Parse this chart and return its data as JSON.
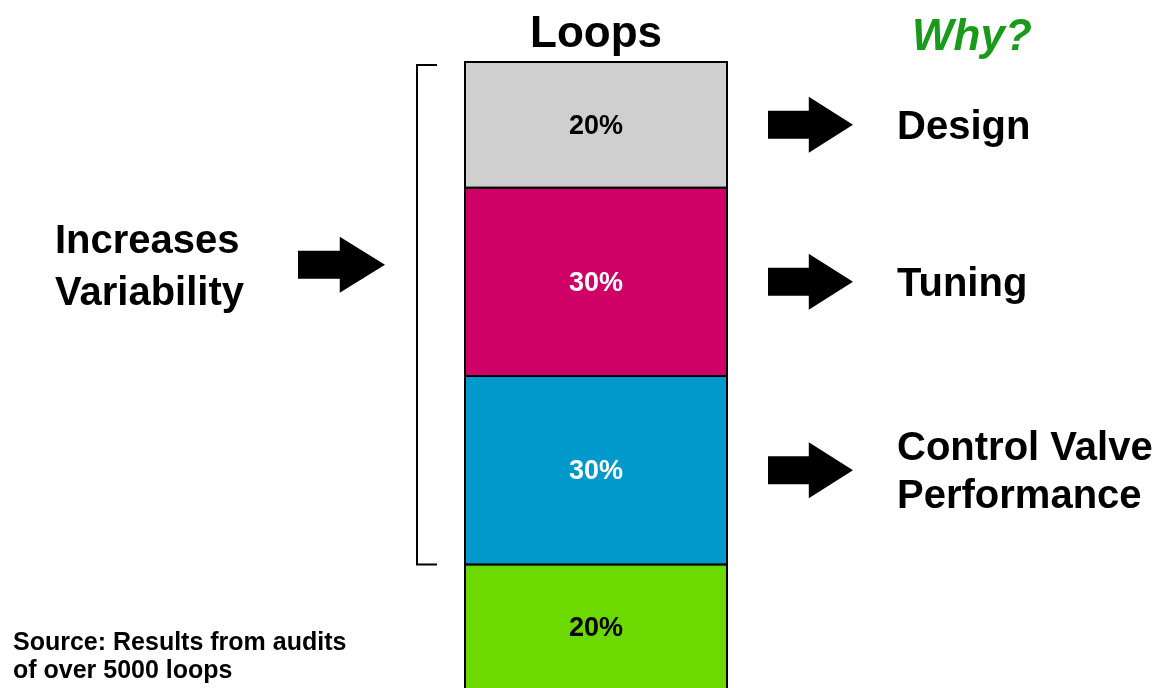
{
  "chart_data": {
    "type": "bar",
    "stacked": true,
    "categories": [
      "Loops"
    ],
    "series": [
      {
        "color": "#6cd900",
        "values": [
          20
        ],
        "value_labels": [
          "20%"
        ]
      },
      {
        "color": "#0099cc",
        "values": [
          30
        ],
        "value_labels": [
          "30%"
        ]
      },
      {
        "color": "#cf0066",
        "values": [
          30
        ],
        "value_labels": [
          "30%"
        ]
      },
      {
        "color": "#cfcfcf",
        "values": [
          20
        ],
        "value_labels": [
          "20%"
        ]
      }
    ],
    "annotations": [
      "Why?",
      "Design",
      "Tuning",
      "Control Valve Performance",
      "Increases Variability",
      "Source: Results from audits of over 5000 loops"
    ]
  }
}
